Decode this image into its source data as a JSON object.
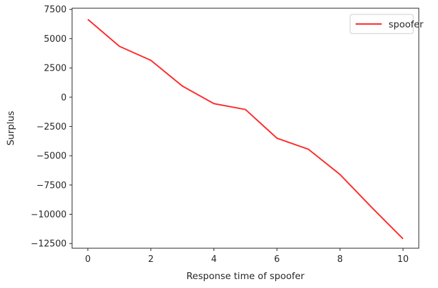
{
  "chart_data": {
    "type": "line",
    "title": "",
    "xlabel": "Response time of spoofer",
    "ylabel": "Surplus",
    "x": [
      0,
      1,
      2,
      3,
      4,
      5,
      6,
      7,
      8,
      9,
      10
    ],
    "series": [
      {
        "name": "spoofer",
        "color": "#ff2a2a",
        "values": [
          6650,
          4350,
          3150,
          950,
          -550,
          -1050,
          -3500,
          -4450,
          -6600,
          -9400,
          -12100
        ]
      }
    ],
    "xlim": [
      -0.5,
      10.5
    ],
    "ylim": [
      -12900,
      7600
    ],
    "xticks": [
      0,
      2,
      4,
      6,
      8,
      10
    ],
    "xtick_labels": [
      "0",
      "2",
      "4",
      "6",
      "8",
      "10"
    ],
    "yticks": [
      7500,
      5000,
      2500,
      0,
      -2500,
      -5000,
      -7500,
      -10000,
      -12500
    ],
    "ytick_labels": [
      "7500",
      "5000",
      "2500",
      "0",
      "−2500",
      "−5000",
      "−7500",
      "−10000",
      "−12500"
    ],
    "grid": false,
    "legend_position": "top-right"
  }
}
